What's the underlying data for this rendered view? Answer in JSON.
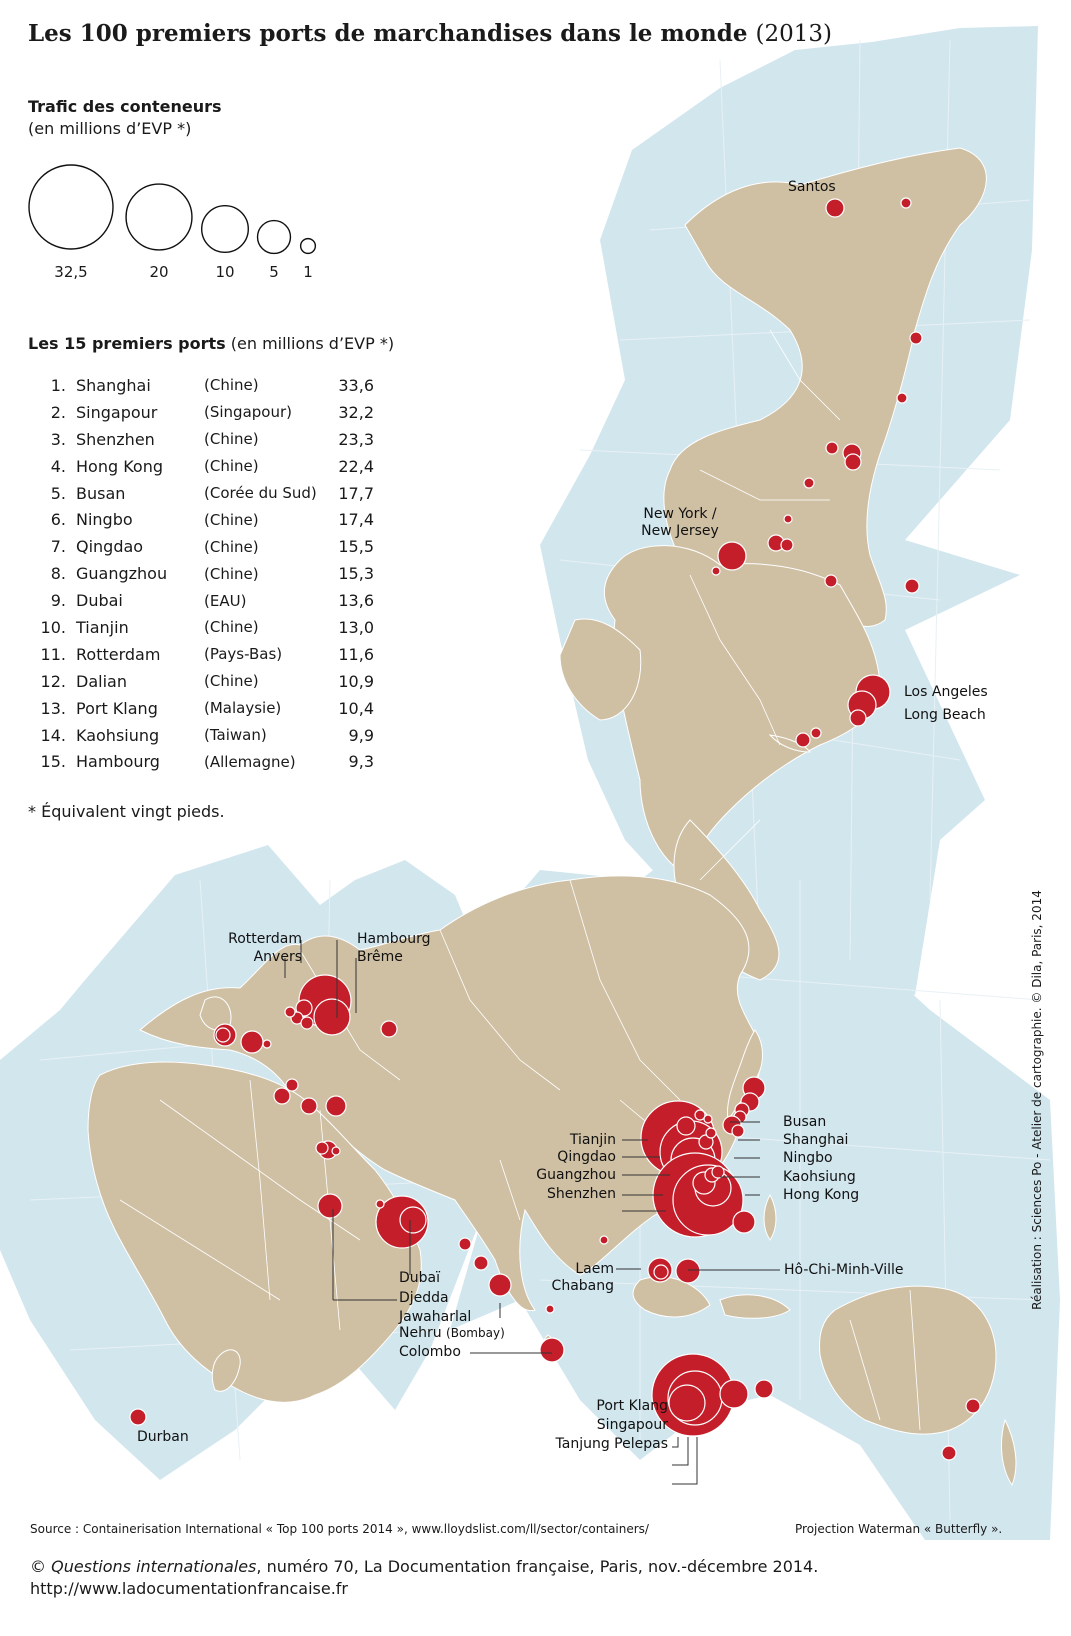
{
  "title": {
    "main": "Les 100 premiers ports de marchandises dans le monde",
    "year": "(2013)"
  },
  "legend": {
    "title": "Trafic des conteneurs",
    "subtitle": "(en millions d’EVP *)",
    "circles": [
      {
        "value": 32.5,
        "label": "32,5"
      },
      {
        "value": 20,
        "label": "20"
      },
      {
        "value": 10,
        "label": "10"
      },
      {
        "value": 5,
        "label": "5"
      },
      {
        "value": 1,
        "label": "1"
      }
    ]
  },
  "ranking": {
    "heading_bold": "Les 15 premiers ports",
    "heading_rest": " (en millions d’EVP *)",
    "rows": [
      {
        "rank": "1.",
        "port": "Shanghai",
        "country": "(Chine)",
        "value": "33,6"
      },
      {
        "rank": "2.",
        "port": "Singapour",
        "country": "(Singapour)",
        "value": "32,2"
      },
      {
        "rank": "3.",
        "port": "Shenzhen",
        "country": "(Chine)",
        "value": "23,3"
      },
      {
        "rank": "4.",
        "port": "Hong Kong",
        "country": "(Chine)",
        "value": "22,4"
      },
      {
        "rank": "5.",
        "port": "Busan",
        "country": "(Corée du Sud)",
        "value": "17,7"
      },
      {
        "rank": "6.",
        "port": "Ningbo",
        "country": "(Chine)",
        "value": "17,4"
      },
      {
        "rank": "7.",
        "port": "Qingdao",
        "country": "(Chine)",
        "value": "15,5"
      },
      {
        "rank": "8.",
        "port": "Guangzhou",
        "country": "(Chine)",
        "value": "15,3"
      },
      {
        "rank": "9.",
        "port": "Dubai",
        "country": "(EAU)",
        "value": "13,6"
      },
      {
        "rank": "10.",
        "port": "Tianjin",
        "country": "(Chine)",
        "value": "13,0"
      },
      {
        "rank": "11.",
        "port": "Rotterdam",
        "country": "(Pays-Bas)",
        "value": "11,6"
      },
      {
        "rank": "12.",
        "port": "Dalian",
        "country": "(Chine)",
        "value": "10,9"
      },
      {
        "rank": "13.",
        "port": "Port Klang",
        "country": "(Malaysie)",
        "value": "10,4"
      },
      {
        "rank": "14.",
        "port": "Kaohsiung",
        "country": "(Taiwan)",
        "value": "9,9"
      },
      {
        "rank": "15.",
        "port": "Hambourg",
        "country": "(Allemagne)",
        "value": "9,3"
      }
    ]
  },
  "footnote": "* Équivalent vingt pieds.",
  "map_labels": {
    "santos": "Santos",
    "new_york_1": "New York /",
    "new_york_2": "New Jersey",
    "los_angeles": "Los Angeles",
    "long_beach": "Long Beach",
    "rotterdam": "Rotterdam",
    "anvers": "Anvers",
    "hambourg": "Hambourg",
    "breme": "Brême",
    "busan": "Busan",
    "shanghai": "Shanghai",
    "ningbo": "Ningbo",
    "kaohsiung": "Kaohsiung",
    "hong_kong": "Hong Kong",
    "tianjin": "Tianjin",
    "qingdao": "Qingdao",
    "guangzhou": "Guangzhou",
    "shenzhen": "Shenzhen",
    "laem_1": "Laem",
    "laem_2": "Chabang",
    "ho_chi_minh": "Hô-Chi-Minh-Ville",
    "dubai": "Dubaï",
    "djedda": "Djedda",
    "jawaharlal": "Jawaharlal",
    "nehru": "Nehru",
    "bombay": "(Bombay)",
    "colombo": "Colombo",
    "port_klang": "Port Klang",
    "singapour": "Singapour",
    "tanjung": "Tanjung Pelepas",
    "durban": "Durban"
  },
  "source": "Source : Containerisation International « Top 100 ports 2014 », www.lloydslist.com/ll/sector/containers/",
  "projection": "Projection Waterman « Butterfly ».",
  "credit": "Réalisation : Sciences Po - Atelier de cartographie. © Dila, Paris, 2014",
  "copyright": {
    "symbol": "©",
    "publication": "Questions internationales",
    "details": ", numéro 70, La Documentation française, Paris, nov.-décembre 2014.",
    "url": "http://www.ladocumentationfrancaise.fr"
  },
  "colors": {
    "ocean": "#d2e6ee",
    "land": "#cfc0a4",
    "border": "#ffffff",
    "port": "#c31e2a",
    "graticule": "#e8f1f5"
  }
}
